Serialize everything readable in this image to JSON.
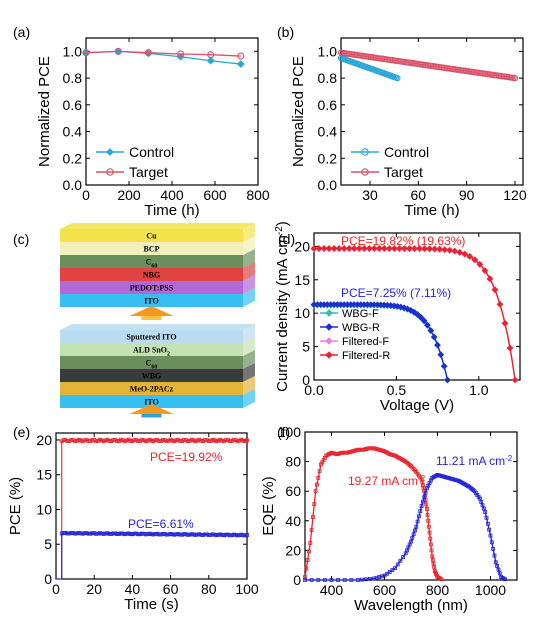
{
  "panels": {
    "a": {
      "label": "(a)"
    },
    "b": {
      "label": "(b)"
    },
    "c": {
      "label": "(c)"
    },
    "d": {
      "label": "(d)"
    },
    "e": {
      "label": "(e)"
    },
    "f": {
      "label": "(f)"
    }
  },
  "stack": {
    "top_layers": [
      {
        "label": "Cu",
        "color": "#f2e34a"
      },
      {
        "label": "BCP",
        "color": "#f1f0b8"
      },
      {
        "label": "C60",
        "color": "#6b8f5c"
      },
      {
        "label": "NBG",
        "color": "#e14242"
      },
      {
        "label": "PEDOT:PSS",
        "color": "#b168d9"
      },
      {
        "label": "ITO",
        "color": "#36bff0"
      }
    ],
    "bottom_layers": [
      {
        "label": "Sputtered ITO",
        "color": "#b8dcf1"
      },
      {
        "label": "ALD SnO2",
        "color": "#c4e3b3"
      },
      {
        "label": "C60",
        "color": "#6b8f5c"
      },
      {
        "label": "WBG",
        "color": "#3b3b3b"
      },
      {
        "label": "MeO-2PACz",
        "color": "#e3b438"
      },
      {
        "label": "ITO",
        "color": "#36bff0"
      }
    ]
  },
  "chart_data": [
    {
      "id": "a",
      "type": "line",
      "xlabel": "Time (h)",
      "ylabel": "Normalized PCE",
      "xlim": [
        0,
        800
      ],
      "ylim": [
        0,
        1.1
      ],
      "xticks": [
        0,
        200,
        400,
        600,
        800
      ],
      "yticks": [
        0.0,
        0.2,
        0.4,
        0.6,
        0.8,
        1.0
      ],
      "legend": "bottom-left",
      "series": [
        {
          "name": "Control",
          "color": "#2aa7d8",
          "x": [
            0,
            150,
            290,
            440,
            580,
            720
          ],
          "y": [
            0.99,
            1.0,
            0.985,
            0.96,
            0.93,
            0.905
          ]
        },
        {
          "name": "Target",
          "color": "#d9546a",
          "x": [
            0,
            150,
            290,
            440,
            580,
            720
          ],
          "y": [
            0.99,
            1.0,
            0.99,
            0.98,
            0.975,
            0.965
          ]
        }
      ]
    },
    {
      "id": "b",
      "type": "line",
      "xlabel": "Time (h)",
      "ylabel": "Normalized PCE",
      "xlim": [
        12,
        125
      ],
      "ylim": [
        0,
        1.1
      ],
      "xticks": [
        30,
        60,
        90,
        120
      ],
      "yticks": [
        0.0,
        0.2,
        0.4,
        0.6,
        0.8,
        1.0
      ],
      "legend": "bottom-left",
      "series": [
        {
          "name": "Control",
          "color": "#2aa7d8",
          "x": [
            12,
            47
          ],
          "y": [
            0.95,
            0.8
          ]
        },
        {
          "name": "Target",
          "color": "#d9546a",
          "x": [
            12,
            120
          ],
          "y": [
            0.99,
            0.8
          ]
        }
      ]
    },
    {
      "id": "d",
      "type": "line",
      "xlabel": "Voltage (V)",
      "ylabel": "Current density (mA cm-2)",
      "xlim": [
        0,
        1.25
      ],
      "ylim": [
        0,
        22
      ],
      "xticks": [
        0.0,
        0.5,
        1.0
      ],
      "yticks": [
        0,
        5,
        10,
        15,
        20
      ],
      "legend": "bottom-left",
      "annotations": [
        {
          "text": "PCE=19.82% (19.63%)",
          "color": "#e8242c"
        },
        {
          "text": "PCE=7.25% (7.11%)",
          "color": "#2424d6"
        }
      ],
      "series": [
        {
          "name": "WBG-F",
          "color": "#2bbfb0",
          "voc": 0.81,
          "jsc": 11.2
        },
        {
          "name": "WBG-R",
          "color": "#1c2fd0",
          "voc": 0.81,
          "jsc": 11.3
        },
        {
          "name": "Filtered-F",
          "color": "#ef7ee6",
          "voc": 1.22,
          "jsc": 19.6
        },
        {
          "name": "Filtered-R",
          "color": "#e8242c",
          "voc": 1.22,
          "jsc": 19.7
        }
      ]
    },
    {
      "id": "e",
      "type": "line",
      "xlabel": "Time (s)",
      "ylabel": "PCE (%)",
      "xlim": [
        0,
        100
      ],
      "ylim": [
        0,
        21
      ],
      "xticks": [
        0,
        20,
        40,
        60,
        80,
        100
      ],
      "yticks": [
        0,
        5,
        10,
        15,
        20
      ],
      "annotations": [
        {
          "text": "PCE=19.92%",
          "color": "#e8242c"
        },
        {
          "text": "PCE=6.61%",
          "color": "#2424d6"
        }
      ],
      "series": [
        {
          "color": "#e8242c",
          "start": 3,
          "end": 100,
          "value": 19.92
        },
        {
          "color": "#2424d6",
          "start": 3,
          "end": 100,
          "value": 6.61
        }
      ]
    },
    {
      "id": "f",
      "type": "line",
      "xlabel": "Wavelength (nm)",
      "ylabel": "EQE (%)",
      "xlim": [
        300,
        1100
      ],
      "ylim": [
        0,
        100
      ],
      "xticks": [
        400,
        600,
        800,
        1000
      ],
      "yticks": [
        0,
        20,
        40,
        60,
        80,
        100
      ],
      "annotations": [
        {
          "text": "19.27 mA cm-2",
          "color": "#e8242c"
        },
        {
          "text": "11.21 mA cm-2",
          "color": "#2424d6"
        }
      ],
      "series": [
        {
          "color": "#e8242c",
          "x": [
            300,
            320,
            340,
            360,
            380,
            400,
            420,
            440,
            460,
            480,
            500,
            520,
            540,
            560,
            580,
            600,
            620,
            640,
            660,
            680,
            700,
            720,
            740,
            750,
            760,
            770,
            780,
            790,
            800,
            820
          ],
          "y": [
            2,
            25,
            60,
            78,
            84,
            86,
            85,
            86,
            86,
            87,
            88,
            88,
            89,
            89,
            88,
            87,
            85,
            84,
            82,
            80,
            77,
            73,
            68,
            60,
            48,
            32,
            16,
            6,
            2,
            0
          ]
        },
        {
          "color": "#2424d6",
          "x": [
            300,
            400,
            500,
            560,
            600,
            640,
            680,
            700,
            720,
            740,
            760,
            780,
            800,
            820,
            840,
            860,
            880,
            900,
            920,
            940,
            960,
            980,
            1000,
            1020,
            1040,
            1060
          ],
          "y": [
            0,
            0,
            0,
            1,
            3,
            8,
            18,
            26,
            36,
            50,
            62,
            69,
            71,
            70,
            69,
            68,
            67,
            65,
            63,
            60,
            55,
            46,
            30,
            12,
            2,
            0
          ]
        }
      ]
    }
  ]
}
